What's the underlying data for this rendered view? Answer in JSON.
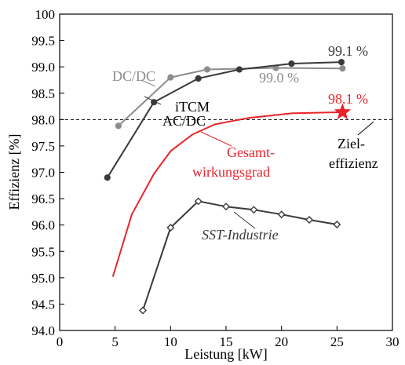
{
  "chart_data": {
    "type": "line",
    "title": "",
    "xlabel": "Leistung [kW]",
    "ylabel": "Effizienz [%]",
    "xlim": [
      0,
      30
    ],
    "ylim": [
      94.0,
      100
    ],
    "xticks": [
      "0",
      "5",
      "10",
      "15",
      "20",
      "25",
      "30"
    ],
    "yticks": [
      "94.0",
      "94.5",
      "95.0",
      "95.5",
      "96.0",
      "96.5",
      "97.0",
      "97.5",
      "98.0",
      "98.5",
      "99.0",
      "99.5",
      "100"
    ],
    "grid": false,
    "target_line": {
      "y": 98.0,
      "style": "dashed"
    },
    "series": [
      {
        "key": "dcdc",
        "color": "#8c8c8c",
        "marker": "circle",
        "x": [
          5.3,
          10.0,
          13.3,
          19.5,
          25.5
        ],
        "y": [
          97.88,
          98.8,
          98.95,
          98.98,
          98.97
        ]
      },
      {
        "key": "itcm",
        "color": "#3a3a3a",
        "marker": "circle",
        "x": [
          4.3,
          8.5,
          12.5,
          16.2,
          20.9,
          25.4
        ],
        "y": [
          96.9,
          98.33,
          98.78,
          98.95,
          99.06,
          99.09
        ]
      },
      {
        "key": "gesamt",
        "color": "#e8242a",
        "marker": "none",
        "x": [
          4.8,
          6.5,
          8.5,
          10.0,
          12.0,
          14.0,
          17.0,
          21.0,
          25.5
        ],
        "y": [
          95.02,
          96.2,
          96.97,
          97.4,
          97.72,
          97.91,
          98.03,
          98.12,
          98.14
        ]
      },
      {
        "key": "sst",
        "color": "#3a3a3a",
        "marker": "diamond",
        "x": [
          7.5,
          10.0,
          12.5,
          15.0,
          17.5,
          20.0,
          22.5,
          25.0
        ],
        "y": [
          94.38,
          95.95,
          96.45,
          96.35,
          96.29,
          96.2,
          96.1,
          96.01
        ]
      }
    ],
    "highlight": {
      "x": 25.5,
      "y": 98.14,
      "marker": "star",
      "color": "#e8242a"
    },
    "annotations": {
      "dcdc": "DC/DC",
      "itcm_1": "iTCM",
      "itcm_2": "AC/DC",
      "gesamt_1": "Gesamt-",
      "gesamt_2": "wirkungsgrad",
      "sst": "SST-Industrie",
      "ziel_1": "Ziel-",
      "ziel_2": "effizienz",
      "val_itcm": "99.1 %",
      "val_dcdc": "99.0 %",
      "val_gesamt": "98.1 %"
    }
  }
}
